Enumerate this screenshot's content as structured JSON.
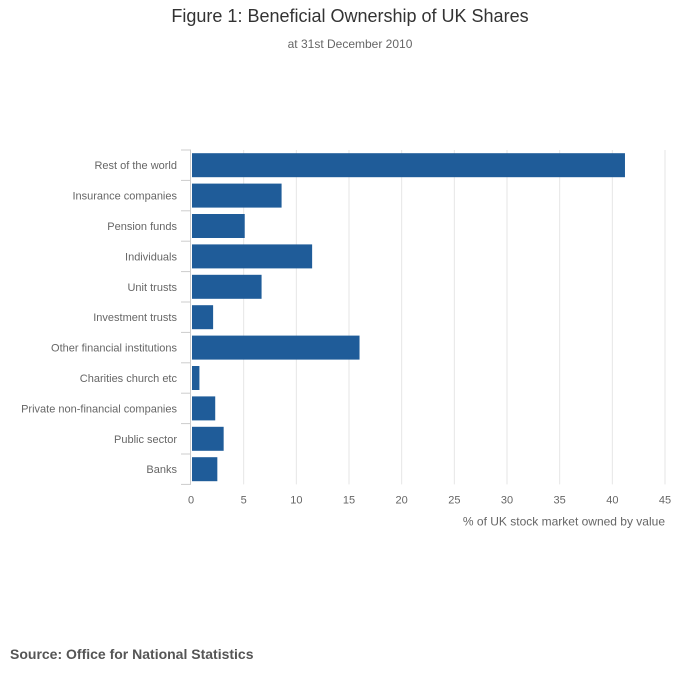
{
  "chart_data": {
    "type": "bar",
    "orientation": "horizontal",
    "title": "Figure 1: Beneficial Ownership of UK Shares",
    "subtitle": "at 31st December 2010",
    "xlabel": "% of UK stock market owned by value",
    "ylabel": "",
    "xlim": [
      0,
      45
    ],
    "ticks": [
      0,
      5,
      10,
      15,
      20,
      25,
      30,
      35,
      40,
      45
    ],
    "categories": [
      "Rest of the world",
      "Insurance companies",
      "Pension funds",
      "Individuals",
      "Unit trusts",
      "Investment trusts",
      "Other financial institutions",
      "Charities church etc",
      "Private non-financial companies",
      "Public sector",
      "Banks"
    ],
    "values": [
      41.2,
      8.6,
      5.1,
      11.5,
      6.7,
      2.1,
      16.0,
      0.8,
      2.3,
      3.1,
      2.5
    ],
    "bar_color": "#1f5c99"
  },
  "footer": {
    "source": "Source: Office for National Statistics"
  }
}
